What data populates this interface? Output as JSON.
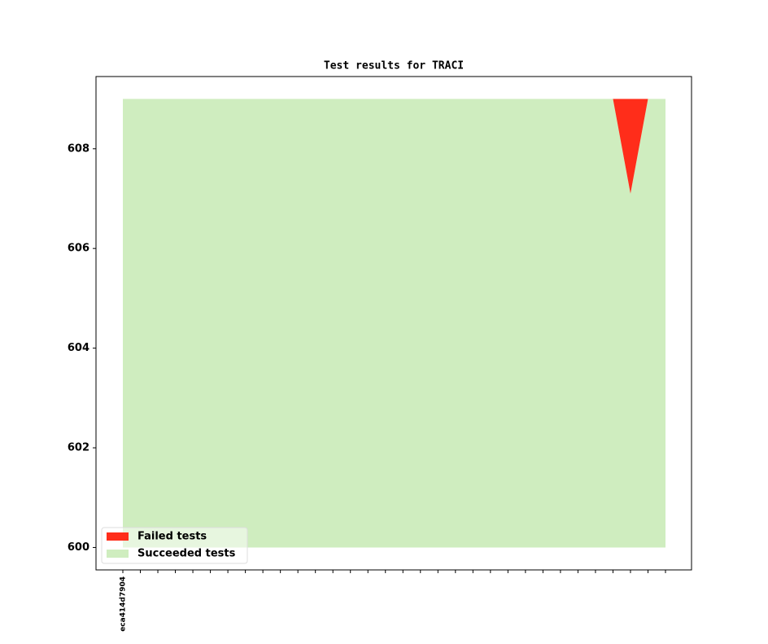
{
  "chart_data": {
    "type": "area",
    "title": "Test results for TRACI",
    "categories": [
      "eca414d7904",
      null,
      null,
      null,
      null,
      null,
      null,
      null,
      null,
      null,
      null,
      null,
      null,
      null,
      null,
      null,
      null,
      null,
      null,
      null,
      null,
      null,
      null,
      null,
      null,
      null,
      null,
      null,
      null,
      null,
      null,
      null
    ],
    "series": [
      {
        "name": "Succeeded tests",
        "color": "#cfedbf",
        "values": [
          609,
          609,
          609,
          609,
          609,
          609,
          609,
          609,
          609,
          609,
          609,
          609,
          609,
          609,
          609,
          609,
          609,
          609,
          609,
          609,
          609,
          609,
          609,
          609,
          609,
          609,
          609,
          609,
          609,
          607.1,
          609,
          609
        ]
      },
      {
        "name": "Failed tests",
        "color": "#ff2d1a",
        "values": [
          0,
          0,
          0,
          0,
          0,
          0,
          0,
          0,
          0,
          0,
          0,
          0,
          0,
          0,
          0,
          0,
          0,
          0,
          0,
          0,
          0,
          0,
          0,
          0,
          0,
          0,
          0,
          0,
          0,
          1.9,
          0,
          0
        ]
      }
    ],
    "ylim": [
      599.55,
      609.45
    ],
    "yticks": [
      600,
      602,
      604,
      606,
      608
    ],
    "legend": "lower left"
  }
}
